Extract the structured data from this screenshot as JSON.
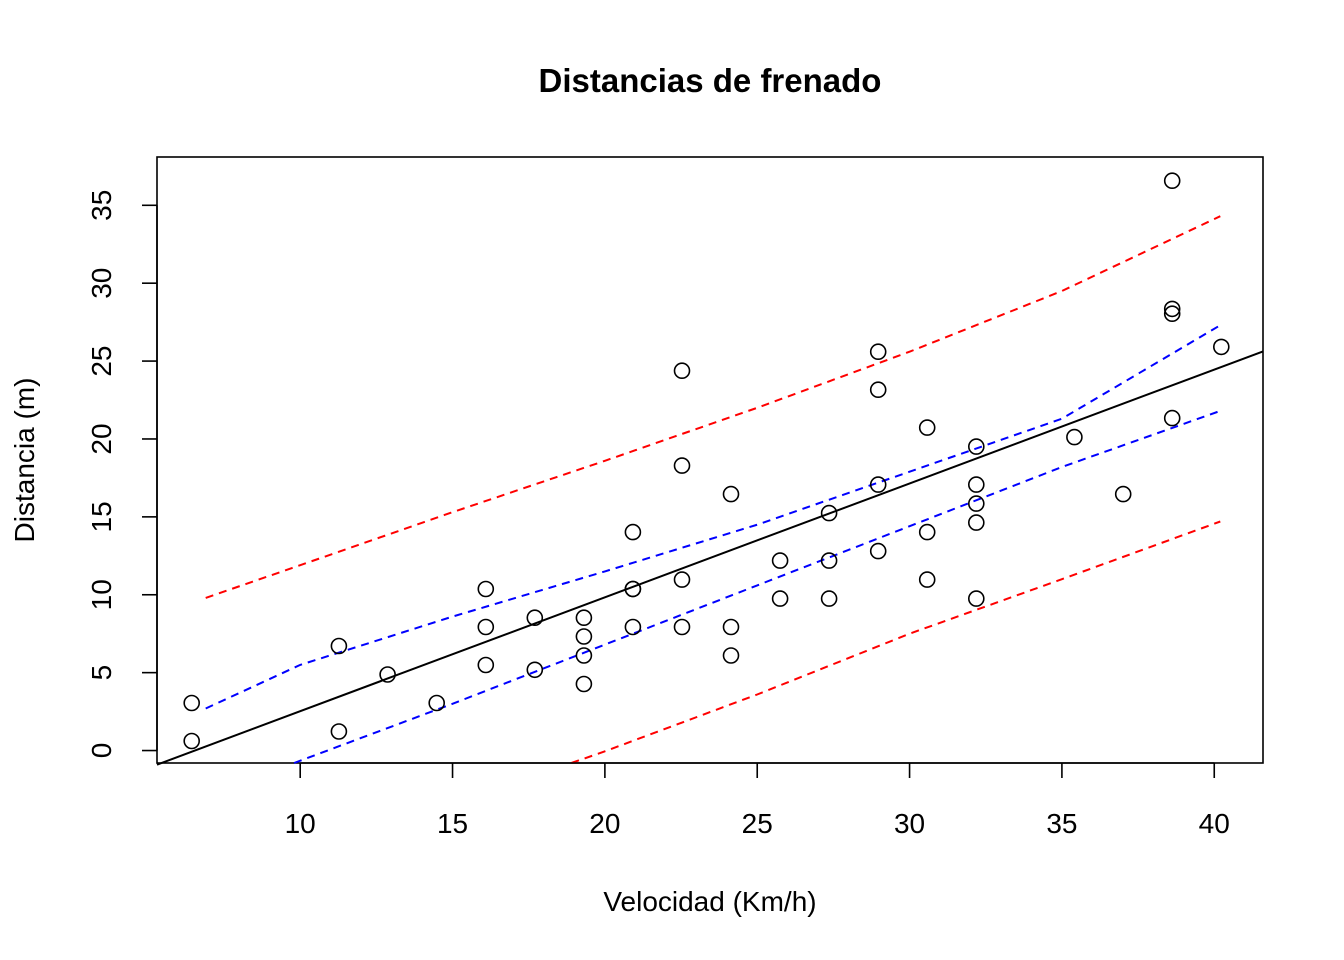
{
  "chart_data": {
    "type": "scatter",
    "title": "Distancias de frenado",
    "xlabel": "Velocidad (Km/h)",
    "ylabel": "Distancia (m)",
    "xlim": [
      5.3,
      41.6
    ],
    "ylim": [
      -0.8,
      38.1
    ],
    "xticks": [
      10,
      15,
      20,
      25,
      30,
      35,
      40
    ],
    "yticks": [
      0,
      5,
      10,
      15,
      20,
      25,
      30,
      35
    ],
    "grid": false,
    "points": [
      [
        6.44,
        0.61
      ],
      [
        6.44,
        3.05
      ],
      [
        11.27,
        1.22
      ],
      [
        11.27,
        6.71
      ],
      [
        12.87,
        4.88
      ],
      [
        14.48,
        3.05
      ],
      [
        16.09,
        5.49
      ],
      [
        16.09,
        7.93
      ],
      [
        16.09,
        10.37
      ],
      [
        17.7,
        5.18
      ],
      [
        17.7,
        8.53
      ],
      [
        19.31,
        4.27
      ],
      [
        19.31,
        6.1
      ],
      [
        19.31,
        7.32
      ],
      [
        19.31,
        8.53
      ],
      [
        20.92,
        7.93
      ],
      [
        20.92,
        10.37
      ],
      [
        20.92,
        10.37
      ],
      [
        20.92,
        14.02
      ],
      [
        22.53,
        7.93
      ],
      [
        22.53,
        10.97
      ],
      [
        22.53,
        18.29
      ],
      [
        22.53,
        24.38
      ],
      [
        24.14,
        6.1
      ],
      [
        24.14,
        7.93
      ],
      [
        24.14,
        16.46
      ],
      [
        25.75,
        9.75
      ],
      [
        25.75,
        12.19
      ],
      [
        27.36,
        9.75
      ],
      [
        27.36,
        12.19
      ],
      [
        27.36,
        15.24
      ],
      [
        28.97,
        12.8
      ],
      [
        28.97,
        17.07
      ],
      [
        28.97,
        23.16
      ],
      [
        28.97,
        25.6
      ],
      [
        30.58,
        10.97
      ],
      [
        30.58,
        14.02
      ],
      [
        30.58,
        20.73
      ],
      [
        32.19,
        9.75
      ],
      [
        32.19,
        14.63
      ],
      [
        32.19,
        15.85
      ],
      [
        32.19,
        17.07
      ],
      [
        32.19,
        19.51
      ],
      [
        35.41,
        20.12
      ],
      [
        37.01,
        16.46
      ],
      [
        38.62,
        21.34
      ],
      [
        38.62,
        28.04
      ],
      [
        38.62,
        28.35
      ],
      [
        38.62,
        36.58
      ],
      [
        40.23,
        25.91
      ]
    ],
    "series": [
      {
        "kind": "fitted line",
        "color": "#000000",
        "style": "solid",
        "x": [
          5.3,
          41.6
        ],
        "y": [
          -0.91,
          25.62
        ]
      },
      {
        "kind": "confidence band upper",
        "color": "#0000ff",
        "style": "dashed",
        "x": [
          6.9,
          10,
          15,
          20,
          25,
          30,
          35,
          40.2
        ],
        "y": [
          2.7,
          5.5,
          8.6,
          11.5,
          14.5,
          17.9,
          21.3,
          27.3
        ]
      },
      {
        "kind": "confidence band lower",
        "color": "#0000ff",
        "style": "dashed",
        "x": [
          9.8,
          15,
          20,
          25,
          30,
          35,
          40.2
        ],
        "y": [
          -0.8,
          3.0,
          6.8,
          10.6,
          14.4,
          18.2,
          21.8
        ]
      },
      {
        "kind": "prediction band upper",
        "color": "#ff0000",
        "style": "dashed",
        "x": [
          6.9,
          10,
          15,
          20,
          25,
          30,
          35,
          40.2
        ],
        "y": [
          9.8,
          11.9,
          15.3,
          18.6,
          22.0,
          25.6,
          29.5,
          34.3
        ]
      },
      {
        "kind": "prediction band lower",
        "color": "#ff0000",
        "style": "dashed",
        "x": [
          18.9,
          20,
          25,
          30,
          35,
          40.2
        ],
        "y": [
          -0.8,
          -0.05,
          3.6,
          7.5,
          11.0,
          14.7
        ]
      }
    ]
  }
}
